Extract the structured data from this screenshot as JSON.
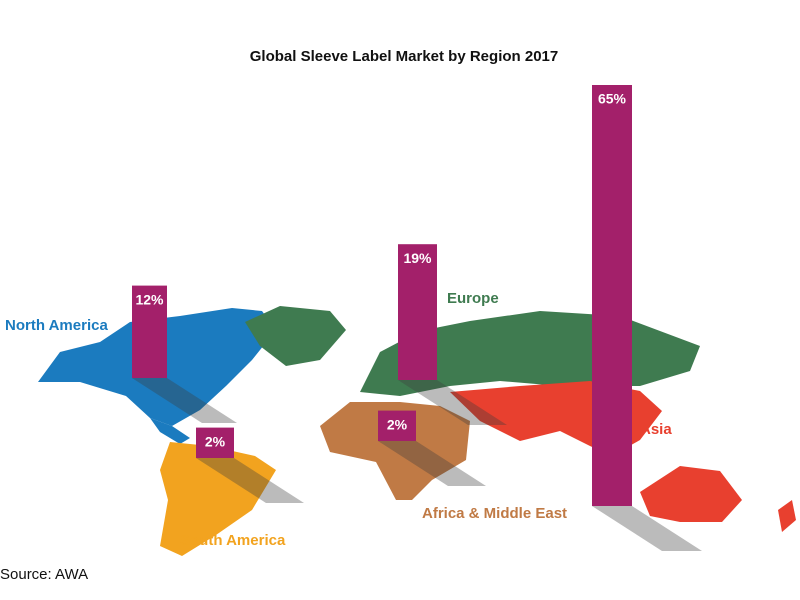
{
  "chart_data": {
    "type": "bar",
    "title": "Global Sleeve Label Market by Region 2017",
    "categories": [
      "North America",
      "South America",
      "Europe",
      "Africa & Middle East",
      "Asia"
    ],
    "values": [
      12,
      2,
      19,
      2,
      65
    ],
    "value_labels": [
      "12%",
      "2%",
      "19%",
      "2%",
      "65%"
    ],
    "color": "#a3206a",
    "category_colors": [
      "#1b7bbf",
      "#f2a31f",
      "#3f7b50",
      "#c07a45",
      "#e8402f"
    ],
    "source": "Source: AWA"
  }
}
